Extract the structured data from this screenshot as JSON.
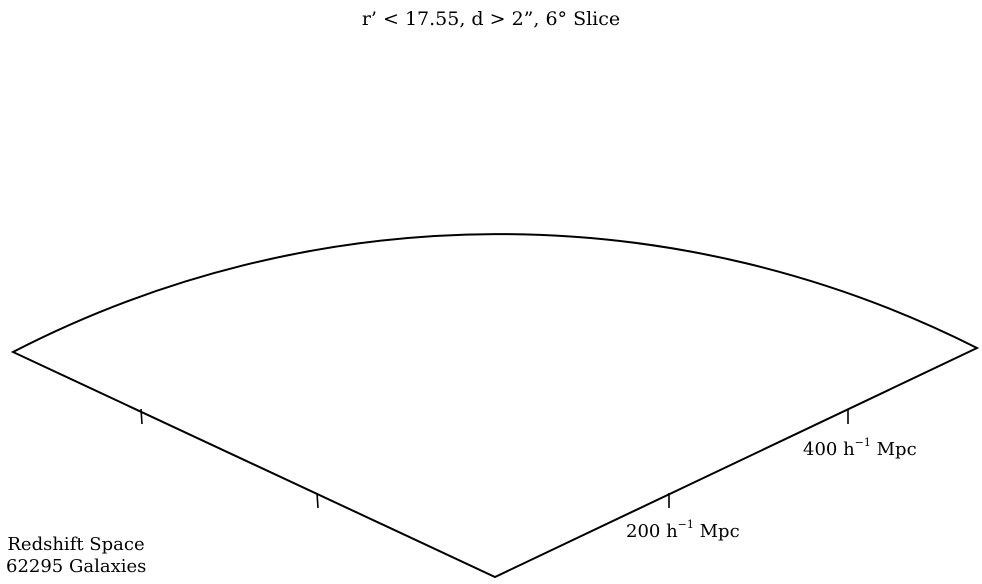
{
  "title": "r’ < 17.55, d > 2”, 6° Slice",
  "corner_label": {
    "line1": "Redshift Space",
    "line2": "62295 Galaxies"
  },
  "scale_labels": [
    {
      "prefix": "200 h",
      "exponent": "−1",
      "suffix": " Mpc"
    },
    {
      "prefix": "400 h",
      "exponent": "−1",
      "suffix": " Mpc"
    }
  ],
  "colors": {
    "galaxy": "#2a9a7a",
    "outline": "#000000",
    "background": "#ffffff"
  }
}
